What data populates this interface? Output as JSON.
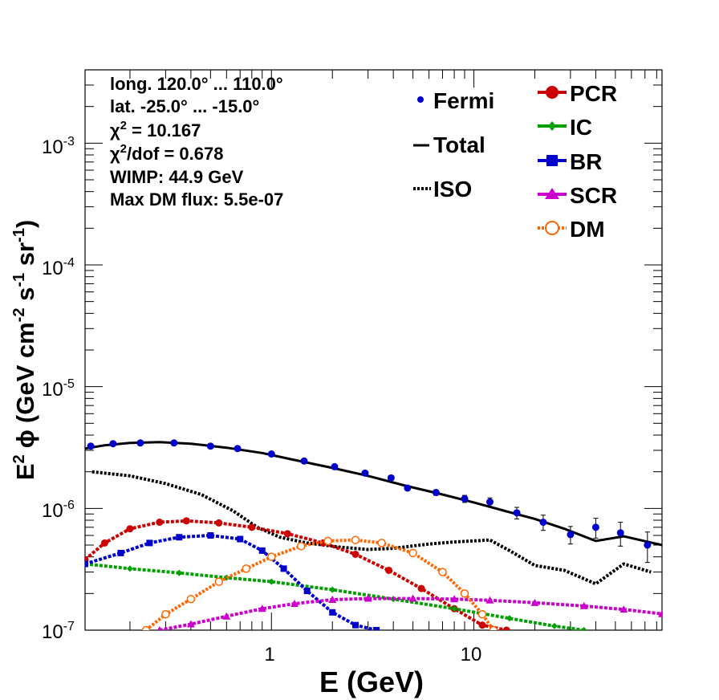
{
  "chart_data": {
    "type": "line",
    "xscale": "log",
    "yscale": "log",
    "xlim": [
      0.12,
      85
    ],
    "ylim": [
      1e-07,
      0.004
    ],
    "xlabel": "E (GeV)",
    "ylabel": {
      "main": "E",
      "sup1": "2",
      "phi": "ϕ",
      "unit": "(GeV cm",
      "sup2": "-2",
      "mid": " s",
      "sup3": "-1",
      "end": " sr",
      "sup4": "-1",
      "close": ")"
    },
    "x_ticks": [
      {
        "value": 1,
        "label": "1"
      },
      {
        "value": 10,
        "label": "10"
      }
    ],
    "y_ticks": [
      {
        "value": 1e-07,
        "base": "10",
        "exp": "-7"
      },
      {
        "value": 1e-06,
        "base": "10",
        "exp": "-6"
      },
      {
        "value": 1e-05,
        "base": "10",
        "exp": "-5"
      },
      {
        "value": 0.0001,
        "base": "10",
        "exp": "-4"
      },
      {
        "value": 0.001,
        "base": "10",
        "exp": "-3"
      }
    ],
    "info": {
      "longitude": "long. 120.0° ... 110.0°",
      "latitude": "lat. -25.0° ... -15.0°",
      "chi2_sym": "χ",
      "chi2_sup": "2",
      "chi2_rest": " = 10.167",
      "chi2dof_rest": "/dof = 0.678",
      "wimp": "WIMP: 44.9 GeV",
      "maxdm": "Max DM flux: 5.5e-07"
    },
    "legend": [
      {
        "name": "Fermi",
        "color": "#0000cc",
        "style": "points"
      },
      {
        "name": "Total",
        "color": "#000000",
        "style": "solid"
      },
      {
        "name": "ISO",
        "color": "#000000",
        "style": "dotted"
      },
      {
        "name": "PCR",
        "color": "#cc0000",
        "style": "circle"
      },
      {
        "name": "IC",
        "color": "#00a000",
        "style": "diamond"
      },
      {
        "name": "BR",
        "color": "#0000cc",
        "style": "square"
      },
      {
        "name": "SCR",
        "color": "#cc00cc",
        "style": "triangle"
      },
      {
        "name": "DM",
        "color": "#ff6600",
        "style": "open-circle"
      }
    ],
    "fermi": {
      "x": [
        0.128,
        0.165,
        0.225,
        0.33,
        0.5,
        0.68,
        1.0,
        1.45,
        2.05,
        2.9,
        3.9,
        4.7,
        6.5,
        9.0,
        12.0,
        16.3,
        22.0,
        30.0,
        40.0,
        53.0,
        72.0
      ],
      "y": [
        3.25e-06,
        3.4e-06,
        3.45e-06,
        3.45e-06,
        3.25e-06,
        3.1e-06,
        2.8e-06,
        2.45e-06,
        2.2e-06,
        1.95e-06,
        1.78e-06,
        1.47e-06,
        1.35e-06,
        1.2e-06,
        1.13e-06,
        9.2e-07,
        7.7e-07,
        6.1e-07,
        7e-07,
        6.3e-07,
        5e-07
      ],
      "err": [
        5e-08,
        5e-08,
        5e-08,
        5e-08,
        5e-08,
        5e-08,
        5e-08,
        5e-08,
        5e-08,
        5e-08,
        5e-08,
        6e-08,
        7e-08,
        8e-08,
        9e-08,
        1e-07,
        1.1e-07,
        1e-07,
        1.3e-07,
        1.4e-07,
        1.4e-07
      ]
    },
    "series": [
      {
        "name": "Total",
        "color": "#000000",
        "x": [
          0.12,
          0.15,
          0.2,
          0.28,
          0.4,
          0.6,
          0.9,
          1.3,
          2.0,
          3.0,
          4.5,
          7.0,
          10.0,
          14.0,
          20.0,
          28.0,
          40.0,
          55.0,
          85.0
        ],
        "y": [
          3.1e-06,
          3.3e-06,
          3.45e-06,
          3.5e-06,
          3.4e-06,
          3.15e-06,
          2.85e-06,
          2.5e-06,
          2.15e-06,
          1.85e-06,
          1.55e-06,
          1.3e-06,
          1.12e-06,
          9.6e-07,
          8.2e-07,
          6.8e-07,
          5.4e-07,
          5.9e-07,
          5e-07
        ]
      },
      {
        "name": "ISO",
        "color": "#000000",
        "x": [
          0.13,
          0.2,
          0.3,
          0.45,
          0.65,
          0.85,
          1.1,
          1.5,
          2.2,
          3.0,
          4.0,
          6.0,
          8.0,
          12.0,
          15.0,
          20.0,
          28.0,
          40.0,
          55.0,
          75.0
        ],
        "y": [
          2e-06,
          1.85e-06,
          1.6e-06,
          1.3e-06,
          9.5e-07,
          7e-07,
          5.8e-07,
          5.2e-07,
          4.8e-07,
          4.6e-07,
          4.7e-07,
          5.1e-07,
          5.3e-07,
          5.5e-07,
          4.5e-07,
          3.4e-07,
          3.1e-07,
          2.4e-07,
          3.5e-07,
          3e-07
        ]
      },
      {
        "name": "PCR",
        "color": "#cc0000",
        "x": [
          0.12,
          0.15,
          0.2,
          0.28,
          0.38,
          0.55,
          0.8,
          1.2,
          1.8,
          2.6,
          3.8,
          5.5,
          8.0,
          11.0,
          14.5
        ],
        "y": [
          3.8e-07,
          5.2e-07,
          6.8e-07,
          7.7e-07,
          7.9e-07,
          7.6e-07,
          7e-07,
          6.2e-07,
          5.2e-07,
          4.2e-07,
          3.1e-07,
          2.2e-07,
          1.5e-07,
          1.1e-07,
          1e-07
        ]
      },
      {
        "name": "IC",
        "color": "#00a000",
        "x": [
          0.12,
          0.2,
          0.35,
          0.6,
          1.0,
          2.0,
          4.0,
          8.0,
          15.0,
          25.0,
          35.0
        ],
        "y": [
          3.5e-07,
          3.2e-07,
          2.95e-07,
          2.7e-07,
          2.5e-07,
          2.15e-07,
          1.8e-07,
          1.5e-07,
          1.25e-07,
          1.08e-07,
          1e-07
        ]
      },
      {
        "name": "BR",
        "color": "#0000cc",
        "x": [
          0.12,
          0.18,
          0.25,
          0.35,
          0.5,
          0.7,
          0.9,
          1.15,
          1.5,
          2.0,
          2.6,
          3.3
        ],
        "y": [
          3.5e-07,
          4.3e-07,
          5.2e-07,
          5.8e-07,
          6e-07,
          5.6e-07,
          4.5e-07,
          3.2e-07,
          2.1e-07,
          1.4e-07,
          1.1e-07,
          1e-07
        ]
      },
      {
        "name": "SCR",
        "color": "#cc00cc",
        "x": [
          0.28,
          0.4,
          0.6,
          0.9,
          1.3,
          2.0,
          3.0,
          5.0,
          8.0,
          12.0,
          20.0,
          35.0,
          55.0,
          85.0
        ],
        "y": [
          1e-07,
          1.12e-07,
          1.3e-07,
          1.5e-07,
          1.65e-07,
          1.78e-07,
          1.82e-07,
          1.82e-07,
          1.8e-07,
          1.76e-07,
          1.68e-07,
          1.58e-07,
          1.48e-07,
          1.36e-07
        ]
      },
      {
        "name": "DM",
        "color": "#ff6600",
        "x": [
          0.24,
          0.3,
          0.4,
          0.55,
          0.75,
          1.0,
          1.4,
          1.9,
          2.6,
          3.5,
          5.0,
          7.0,
          9.0,
          11.0,
          12.5
        ],
        "y": [
          1e-07,
          1.35e-07,
          1.8e-07,
          2.5e-07,
          3.2e-07,
          4e-07,
          4.9e-07,
          5.4e-07,
          5.5e-07,
          5.2e-07,
          4.3e-07,
          3e-07,
          2e-07,
          1.35e-07,
          1e-07
        ]
      }
    ]
  }
}
